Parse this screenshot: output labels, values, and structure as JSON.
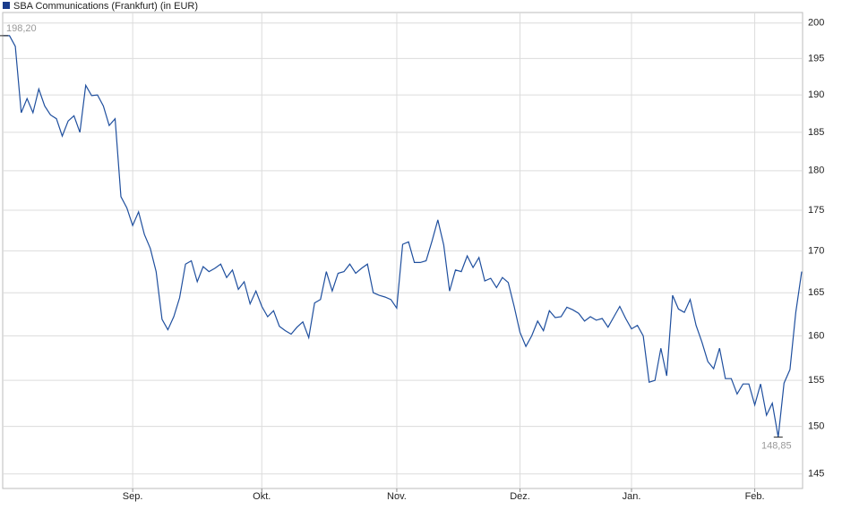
{
  "chart_data": {
    "type": "line",
    "title": "SBA Communications (Frankfurt) (in EUR)",
    "categories": [
      null,
      null,
      null,
      null,
      null,
      null,
      null,
      null,
      null,
      null,
      null,
      null,
      null,
      null,
      null,
      null,
      null,
      null,
      null,
      null,
      null,
      null,
      "Sep.",
      null,
      null,
      null,
      null,
      null,
      null,
      null,
      null,
      null,
      null,
      null,
      null,
      null,
      null,
      null,
      null,
      null,
      null,
      null,
      null,
      null,
      "Okt.",
      null,
      null,
      null,
      null,
      null,
      null,
      null,
      null,
      null,
      null,
      null,
      null,
      null,
      null,
      null,
      null,
      null,
      null,
      null,
      null,
      null,
      null,
      "Nov.",
      null,
      null,
      null,
      null,
      null,
      null,
      null,
      null,
      null,
      null,
      null,
      null,
      null,
      null,
      null,
      null,
      null,
      null,
      null,
      null,
      "Dez.",
      null,
      null,
      null,
      null,
      null,
      null,
      null,
      null,
      null,
      null,
      null,
      null,
      null,
      null,
      null,
      null,
      null,
      null,
      "Jan.",
      null,
      null,
      null,
      null,
      null,
      null,
      null,
      null,
      null,
      null,
      null,
      null,
      null,
      null,
      null,
      null,
      null,
      null,
      null,
      null,
      "Feb.",
      null,
      null,
      null,
      null,
      null,
      null,
      null,
      null
    ],
    "series": [
      {
        "name": "SBA Communications (Frankfurt) (in EUR)",
        "color": "#1f4f9e",
        "values": [
          198.2,
          198.2,
          196.7,
          187.6,
          189.5,
          187.6,
          190.8,
          188.5,
          187.3,
          186.8,
          184.5,
          186.5,
          187.2,
          185.0,
          191.3,
          189.9,
          190.0,
          188.5,
          185.9,
          186.8,
          176.7,
          175.3,
          173.1,
          174.8,
          172.0,
          170.3,
          167.5,
          161.9,
          160.7,
          162.2,
          164.4,
          168.4,
          168.8,
          166.3,
          168.1,
          167.5,
          167.9,
          168.4,
          166.8,
          167.7,
          165.4,
          166.3,
          163.7,
          165.2,
          163.4,
          162.2,
          162.9,
          161.1,
          160.6,
          160.2,
          161.0,
          161.6,
          159.8,
          163.8,
          164.2,
          167.5,
          165.2,
          167.3,
          167.5,
          168.4,
          167.3,
          167.9,
          168.4,
          165.0,
          164.7,
          164.5,
          164.2,
          163.2,
          170.8,
          171.1,
          168.6,
          168.6,
          168.8,
          171.2,
          173.8,
          170.7,
          165.2,
          167.7,
          167.5,
          169.4,
          168.0,
          169.2,
          166.4,
          166.7,
          165.6,
          166.8,
          166.2,
          163.4,
          160.4,
          158.8,
          160.0,
          161.7,
          160.6,
          162.9,
          162.1,
          162.2,
          163.3,
          163.0,
          162.6,
          161.7,
          162.2,
          161.8,
          162.0,
          161.0,
          162.2,
          163.4,
          162.0,
          160.8,
          161.2,
          160.0,
          154.8,
          155.0,
          158.6,
          155.5,
          164.7,
          163.1,
          162.7,
          164.2,
          161.2,
          159.3,
          157.1,
          156.3,
          158.6,
          155.2,
          155.2,
          153.5,
          154.6,
          154.6,
          152.3,
          154.6,
          151.2,
          152.5,
          148.85,
          154.7,
          156.2,
          162.7,
          167.5
        ]
      }
    ],
    "annotations": [
      {
        "value": 198.2,
        "label": "198,20"
      },
      {
        "value": 148.85,
        "label": "148,85"
      }
    ],
    "ylim": [
      143.5,
      201.5
    ],
    "yticks": [
      145,
      150,
      155,
      160,
      165,
      170,
      175,
      180,
      185,
      190,
      195,
      200
    ],
    "log_scale": true,
    "grid": true,
    "legend": "top-left"
  }
}
